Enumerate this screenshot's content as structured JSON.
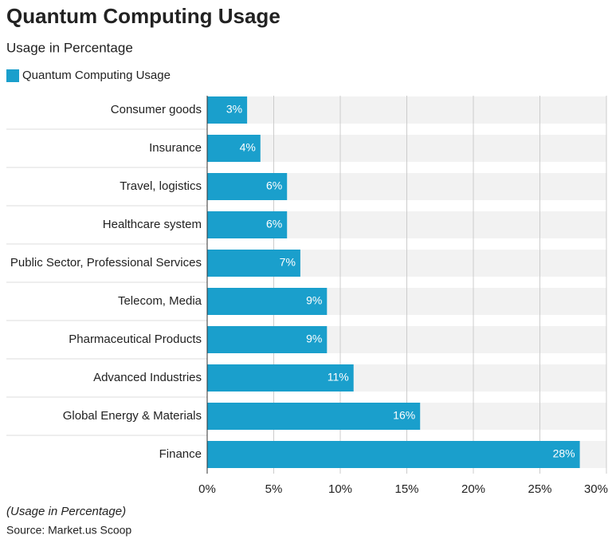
{
  "chart_data": {
    "type": "bar",
    "orientation": "horizontal",
    "title": "Quantum Computing Usage",
    "subtitle": "Usage in Percentage",
    "categories": [
      "Consumer goods",
      "Insurance",
      "Travel, logistics",
      "Healthcare system",
      "Public Sector, Professional Services",
      "Telecom, Media",
      "Pharmaceutical Products",
      "Advanced Industries",
      "Global Energy & Materials",
      "Finance"
    ],
    "series": [
      {
        "name": "Quantum Computing Usage",
        "color": "#1a9fcc",
        "values": [
          3,
          4,
          6,
          6,
          7,
          9,
          9,
          11,
          16,
          28
        ],
        "value_labels": [
          "3%",
          "4%",
          "6%",
          "6%",
          "7%",
          "9%",
          "9%",
          "11%",
          "16%",
          "28%"
        ]
      }
    ],
    "xlim": [
      0,
      30
    ],
    "xticks": [
      {
        "value": 0,
        "label": "0%"
      },
      {
        "value": 5,
        "label": "5%"
      },
      {
        "value": 10,
        "label": "10%"
      },
      {
        "value": 15,
        "label": "15%"
      },
      {
        "value": 20,
        "label": "20%"
      },
      {
        "value": 25,
        "label": "25%"
      },
      {
        "value": 30,
        "label": "30%"
      }
    ],
    "grid": true,
    "legend": "top-left",
    "note": "(Usage in Percentage)",
    "source": "Source: Market.us Scoop"
  }
}
